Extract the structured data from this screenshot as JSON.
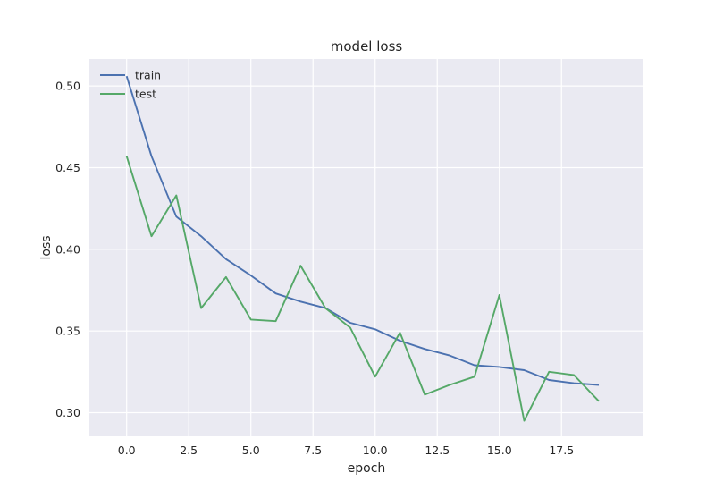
{
  "chart_data": {
    "type": "line",
    "title": "model loss",
    "xlabel": "epoch",
    "ylabel": "loss",
    "x": [
      0,
      1,
      2,
      3,
      4,
      5,
      6,
      7,
      8,
      9,
      10,
      11,
      12,
      13,
      14,
      15,
      16,
      17,
      18,
      19
    ],
    "xlim": [
      -1.5,
      20.8
    ],
    "ylim": [
      0.2855,
      0.5165
    ],
    "xticks": [
      0.0,
      2.5,
      5.0,
      7.5,
      10.0,
      12.5,
      15.0,
      17.5
    ],
    "xtick_labels": [
      "0.0",
      "2.5",
      "5.0",
      "7.5",
      "10.0",
      "12.5",
      "15.0",
      "17.5"
    ],
    "yticks": [
      0.3,
      0.35,
      0.4,
      0.45,
      0.5
    ],
    "ytick_labels": [
      "0.30",
      "0.35",
      "0.40",
      "0.45",
      "0.50"
    ],
    "grid": true,
    "legend_position": "top-left",
    "series": [
      {
        "name": "train",
        "color": "#4c72b0",
        "values": [
          0.506,
          0.457,
          0.42,
          0.408,
          0.394,
          0.384,
          0.373,
          0.368,
          0.364,
          0.355,
          0.351,
          0.344,
          0.339,
          0.335,
          0.329,
          0.328,
          0.326,
          0.32,
          0.318,
          0.317
        ]
      },
      {
        "name": "test",
        "color": "#55a868",
        "values": [
          0.457,
          0.408,
          0.433,
          0.364,
          0.383,
          0.357,
          0.356,
          0.39,
          0.364,
          0.352,
          0.322,
          0.349,
          0.311,
          0.317,
          0.322,
          0.372,
          0.295,
          0.325,
          0.323,
          0.307
        ]
      }
    ]
  }
}
